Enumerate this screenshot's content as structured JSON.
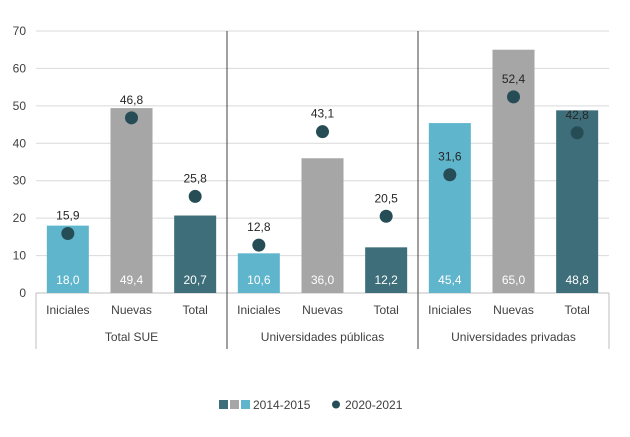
{
  "chart_data": {
    "type": "bar",
    "ylim": [
      0,
      70
    ],
    "yticks": [
      0,
      10,
      20,
      30,
      40,
      50,
      60,
      70
    ],
    "grid": true,
    "groups": [
      {
        "name": "Total SUE",
        "categories": [
          "Iniciales",
          "Nuevas",
          "Total"
        ],
        "bar_values": [
          18.0,
          49.4,
          20.7
        ],
        "bar_labels": [
          "18,0",
          "49,4",
          "20,7"
        ],
        "dot_values": [
          15.9,
          46.8,
          25.8
        ],
        "dot_labels": [
          "15,9",
          "46,8",
          "25,8"
        ]
      },
      {
        "name": "Universidades públicas",
        "categories": [
          "Iniciales",
          "Nuevas",
          "Total"
        ],
        "bar_values": [
          10.6,
          36.0,
          12.2
        ],
        "bar_labels": [
          "10,6",
          "36,0",
          "12,2"
        ],
        "dot_values": [
          12.8,
          43.1,
          20.5
        ],
        "dot_labels": [
          "12,8",
          "43,1",
          "20,5"
        ]
      },
      {
        "name": "Universidades privadas",
        "categories": [
          "Iniciales",
          "Nuevas",
          "Total"
        ],
        "bar_values": [
          45.4,
          65.0,
          48.8
        ],
        "bar_labels": [
          "45,4",
          "65,0",
          "48,8"
        ],
        "dot_values": [
          31.6,
          52.4,
          42.8
        ],
        "dot_labels": [
          "31,6",
          "52,4",
          "42,8"
        ]
      }
    ],
    "category_colors": [
      "#5fb5cc",
      "#a6a6a6",
      "#3d6e79"
    ],
    "dot_color": "#264d55",
    "legend": {
      "position": "bottom",
      "bar_series": "2014-2015",
      "dot_series": "2020-2021"
    }
  }
}
